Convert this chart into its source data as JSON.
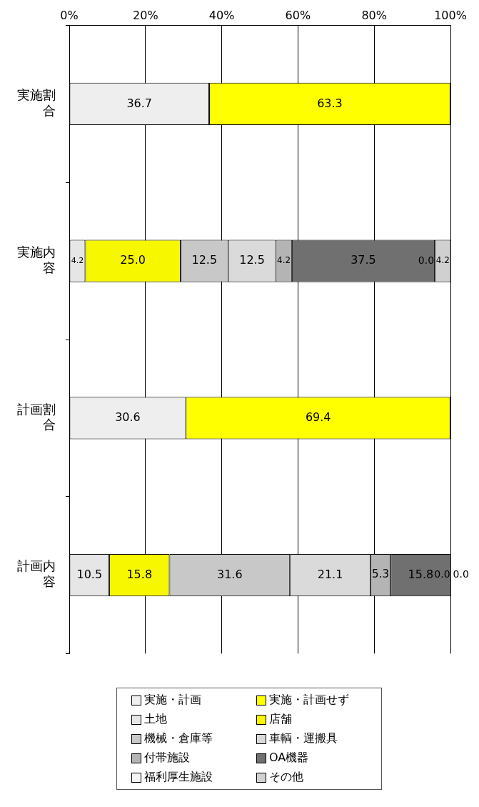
{
  "chart_data": {
    "type": "bar",
    "orientation": "horizontal",
    "stacked": true,
    "categories": [
      "実施割合",
      "実施内容",
      "計画割合",
      "計画内容"
    ],
    "xlim": [
      0,
      100
    ],
    "xticks": [
      {
        "value": 0,
        "label": "0%"
      },
      {
        "value": 20,
        "label": "20%"
      },
      {
        "value": 40,
        "label": "40%"
      },
      {
        "value": 60,
        "label": "60%"
      },
      {
        "value": 80,
        "label": "80%"
      },
      {
        "value": 100,
        "label": "100%"
      }
    ],
    "grid": "x",
    "legend": "bottom",
    "series": [
      {
        "name": "実施・計画",
        "color": "#eeeeee",
        "values": [
          36.7,
          null,
          30.6,
          null
        ],
        "value_labels": [
          "36.7",
          null,
          "30.6",
          null
        ]
      },
      {
        "name": "実施・計画せず",
        "color": "#ffff00",
        "values": [
          63.3,
          null,
          69.4,
          null
        ],
        "value_labels": [
          "63.3",
          null,
          "69.4",
          null
        ]
      },
      {
        "name": "土地",
        "color": "#e6e6e6",
        "values": [
          null,
          4.2,
          null,
          10.5
        ],
        "value_labels": [
          null,
          "4.2",
          null,
          "10.5"
        ]
      },
      {
        "name": "店舗",
        "color": "#f7f700",
        "values": [
          null,
          25.0,
          null,
          15.8
        ],
        "value_labels": [
          null,
          "25.0",
          null,
          "15.8"
        ]
      },
      {
        "name": "機械・倉庫等",
        "color": "#c8c8c8",
        "values": [
          null,
          12.5,
          null,
          31.6
        ],
        "value_labels": [
          null,
          "12.5",
          null,
          "31.6"
        ]
      },
      {
        "name": "車輌・運搬具",
        "color": "#dadada",
        "values": [
          null,
          12.5,
          null,
          21.1
        ],
        "value_labels": [
          null,
          "12.5",
          null,
          "21.1"
        ]
      },
      {
        "name": "付帯施設",
        "color": "#b4b4b4",
        "values": [
          null,
          4.2,
          null,
          5.3
        ],
        "value_labels": [
          null,
          "4.2",
          null,
          "5.3"
        ]
      },
      {
        "name": "OA機器",
        "color": "#707070",
        "values": [
          null,
          37.5,
          null,
          15.8
        ],
        "value_labels": [
          null,
          "37.5",
          null,
          "15.8"
        ]
      },
      {
        "name": "福利厚生施設",
        "color": "#f6f6f6",
        "values": [
          null,
          0.0,
          null,
          0.0
        ],
        "value_labels": [
          null,
          "0.0",
          null,
          "0.0"
        ]
      },
      {
        "name": "その他",
        "color": "#d0d0d0",
        "values": [
          null,
          4.2,
          null,
          0.0
        ],
        "value_labels": [
          null,
          "4.2",
          null,
          "0.0"
        ]
      }
    ]
  }
}
